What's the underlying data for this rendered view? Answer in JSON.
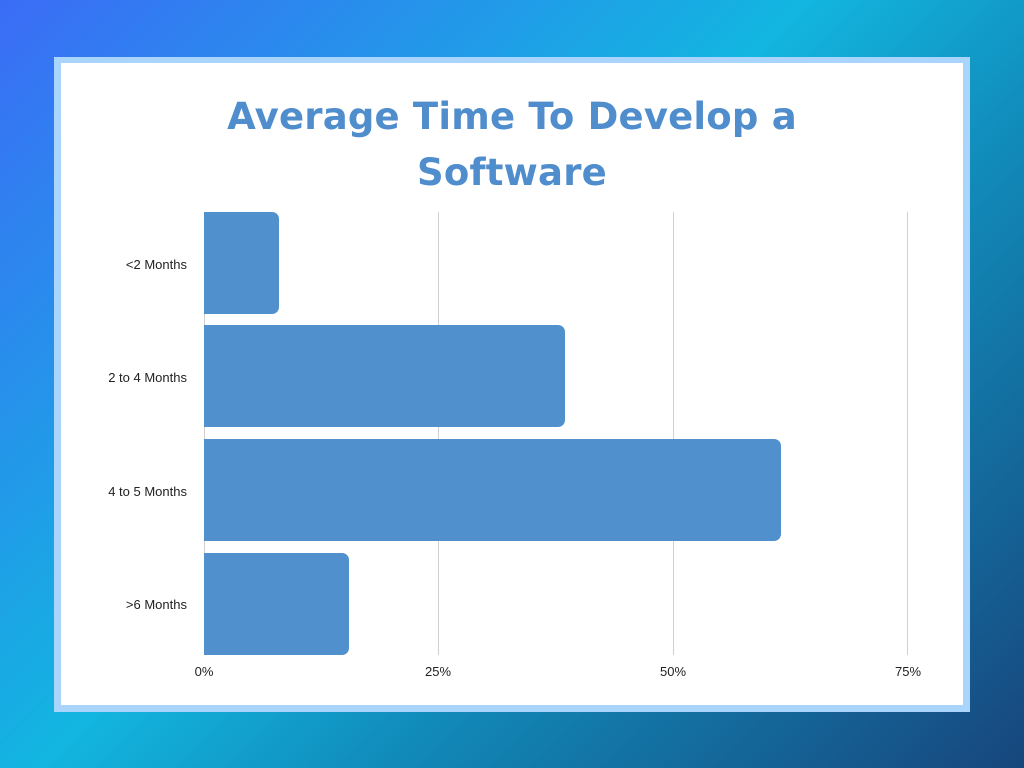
{
  "title_line1": "Average Time To Develop a",
  "title_line2": "Software",
  "colors": {
    "bar": "#5090cd",
    "title": "#4f8dcc",
    "frame": "#a9d4fb"
  },
  "chart_data": {
    "type": "bar",
    "orientation": "horizontal",
    "title": "Average Time To Develop a Software",
    "categories": [
      "<2 Months",
      "2 to 4 Months",
      "4 to 5 Months",
      ">6 Months"
    ],
    "values": [
      8,
      38.5,
      61.5,
      15.5
    ],
    "unit": "%",
    "xlabel": "",
    "ylabel": "",
    "xlim": [
      0,
      75
    ],
    "xticks": [
      "0%",
      "25%",
      "50%",
      "75%"
    ],
    "grid": true,
    "legend": null
  }
}
